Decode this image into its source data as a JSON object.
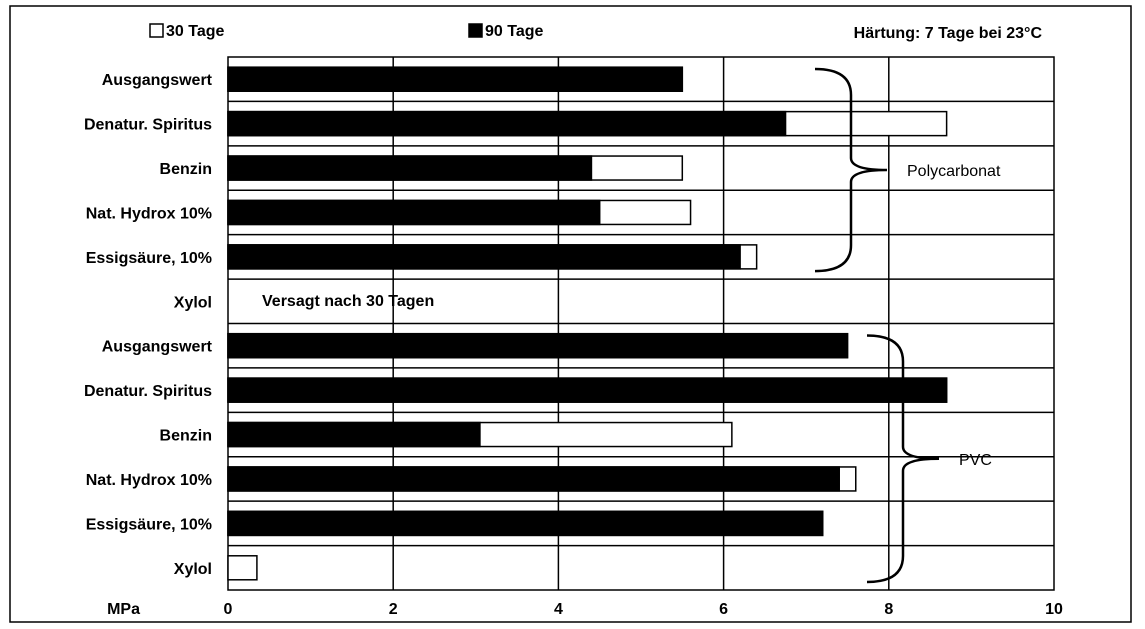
{
  "chart_data": {
    "type": "bar",
    "orientation": "horizontal",
    "legend": {
      "placement": "top",
      "entries": [
        {
          "label": "30 Tage",
          "color": "#ffffff"
        },
        {
          "label": "90 Tage",
          "color": "#000000"
        }
      ]
    },
    "annotation_top_right": "Härtung: 7 Tage bei 23°C",
    "axis_unit_label": "MPa",
    "xlim": [
      0,
      10
    ],
    "x_ticks": [
      0,
      2,
      4,
      6,
      8,
      10
    ],
    "grid": true,
    "categories": [
      "Ausgangswert",
      "Denatur. Spiritus",
      "Benzin",
      "Nat. Hydrox 10%",
      "Essigsäure, 10%",
      "Xylol",
      "Ausgangswert",
      "Denatur. Spiritus",
      "Benzin",
      "Nat. Hydrox 10%",
      "Essigsäure, 10%",
      "Xylol"
    ],
    "series": [
      {
        "name": "30 Tage",
        "values": [
          5.5,
          8.7,
          5.5,
          5.6,
          6.4,
          null,
          7.5,
          8.7,
          6.1,
          7.6,
          7.2,
          0.35
        ]
      },
      {
        "name": "90 Tage",
        "values": [
          5.5,
          6.75,
          4.4,
          4.5,
          6.2,
          null,
          7.5,
          8.7,
          3.05,
          7.4,
          7.2,
          0
        ]
      }
    ],
    "groups": [
      {
        "label": "Polycarbonat",
        "from": 0,
        "to": 4
      },
      {
        "label": "PVC",
        "from": 6,
        "to": 11
      }
    ],
    "note": {
      "text": "Versagt nach 30 Tagen",
      "category_index": 5
    }
  }
}
